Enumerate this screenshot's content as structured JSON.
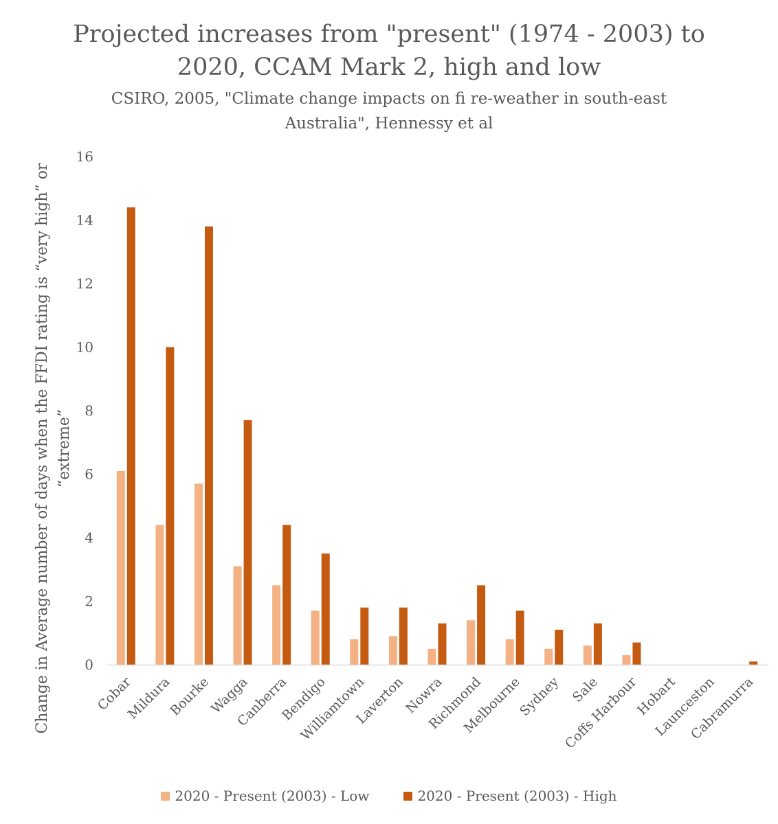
{
  "chart_data": {
    "type": "bar",
    "title_lines": [
      "Projected increases from \"present\" (1974 - 2003) to",
      "2020, CCAM Mark 2, high and low"
    ],
    "subtitle_lines": [
      "CSIRO, 2005, \"Climate change impacts on fi re-weather in south-east",
      "Australia\", Hennessy et al"
    ],
    "ylabel_lines": [
      "Change in Average number of days when the FFDI rating is “very high” or",
      "“extreme”"
    ],
    "xlabel": "",
    "ylim": [
      0,
      16
    ],
    "yticks": [
      "0",
      "2",
      "4",
      "6",
      "8",
      "10",
      "12",
      "14",
      "16"
    ],
    "grid": false,
    "legend_position": "bottom",
    "categories": [
      "Cobar",
      "Mildura",
      "Bourke",
      "Wagga",
      "Canberra",
      "Bendigo",
      "Williamtown",
      "Laverton",
      "Nowra",
      "Richmond",
      "Melbourne",
      "Sydney",
      "Sale",
      "Coffs Harbour",
      "Hobart",
      "Launceston",
      "Cabramurra"
    ],
    "series": [
      {
        "name": "2020 - Present (2003) - Low",
        "color": "#F4B183",
        "values": [
          6.1,
          4.4,
          5.7,
          3.1,
          2.5,
          1.7,
          0.8,
          0.9,
          0.5,
          1.4,
          0.8,
          0.5,
          0.6,
          0.3,
          0,
          0,
          0
        ]
      },
      {
        "name": "2020 - Present (2003) - High",
        "color": "#C55A11",
        "values": [
          14.4,
          10.0,
          13.8,
          7.7,
          4.4,
          3.5,
          1.8,
          1.8,
          1.3,
          2.5,
          1.7,
          1.1,
          1.3,
          0.7,
          0,
          0,
          0.1
        ]
      }
    ]
  }
}
